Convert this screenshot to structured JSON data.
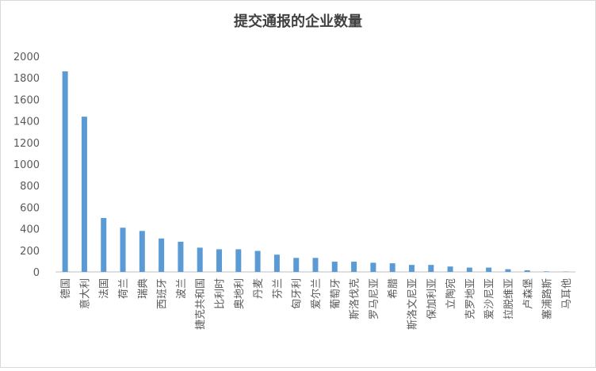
{
  "chart_data": {
    "type": "bar",
    "title": "提交通报的企业数量",
    "categories": [
      "德国",
      "意大利",
      "法国",
      "荷兰",
      "瑞典",
      "西班牙",
      "波兰",
      "捷克共和国",
      "比利时",
      "奥地利",
      "丹麦",
      "芬兰",
      "匈牙利",
      "爱尔兰",
      "葡萄牙",
      "斯洛伐克",
      "罗马尼亚",
      "希腊",
      "斯洛文尼亚",
      "保加利亚",
      "立陶宛",
      "克罗地亚",
      "爱沙尼亚",
      "拉脱维亚",
      "卢森堡",
      "塞浦路斯",
      "马耳他"
    ],
    "values": [
      1860,
      1440,
      500,
      410,
      380,
      310,
      280,
      225,
      210,
      210,
      195,
      160,
      130,
      130,
      95,
      95,
      85,
      80,
      65,
      65,
      50,
      40,
      40,
      25,
      15,
      5,
      3
    ],
    "color": "#5b9bd5",
    "ylim": [
      0,
      2000
    ],
    "yticks": [
      0,
      200,
      400,
      600,
      800,
      1000,
      1200,
      1400,
      1600,
      1800,
      2000
    ],
    "grid": false
  }
}
